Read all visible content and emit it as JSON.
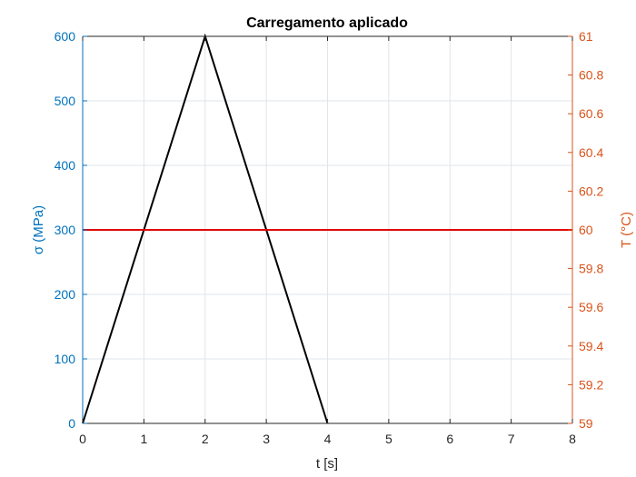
{
  "chart_data": {
    "type": "line",
    "title": "Carregamento aplicado",
    "xlabel": "t [s]",
    "ylabel_left": "σ (MPa)",
    "ylabel_right": "T (°C)",
    "xlim": [
      0,
      8
    ],
    "ylim_left": [
      0,
      600
    ],
    "ylim_right": [
      59,
      61
    ],
    "grid": true,
    "x_ticks": [
      0,
      1,
      2,
      3,
      4,
      5,
      6,
      7,
      8
    ],
    "y_left_ticks": [
      0,
      100,
      200,
      300,
      400,
      500,
      600
    ],
    "y_right_ticks": [
      "59",
      "59.2",
      "59.4",
      "59.6",
      "59.8",
      "60",
      "60.2",
      "60.4",
      "60.6",
      "60.8",
      "61"
    ],
    "series": [
      {
        "axis": "left",
        "color": "#000000",
        "x": [
          0,
          2,
          4
        ],
        "y": [
          0,
          600,
          0
        ]
      },
      {
        "axis": "right",
        "color": "#e00000",
        "x": [
          0,
          8
        ],
        "y": [
          60,
          60
        ]
      }
    ],
    "colors": {
      "left_axis": "#0072bd",
      "right_axis": "#d95319",
      "grid": "#dfe5ea"
    }
  }
}
